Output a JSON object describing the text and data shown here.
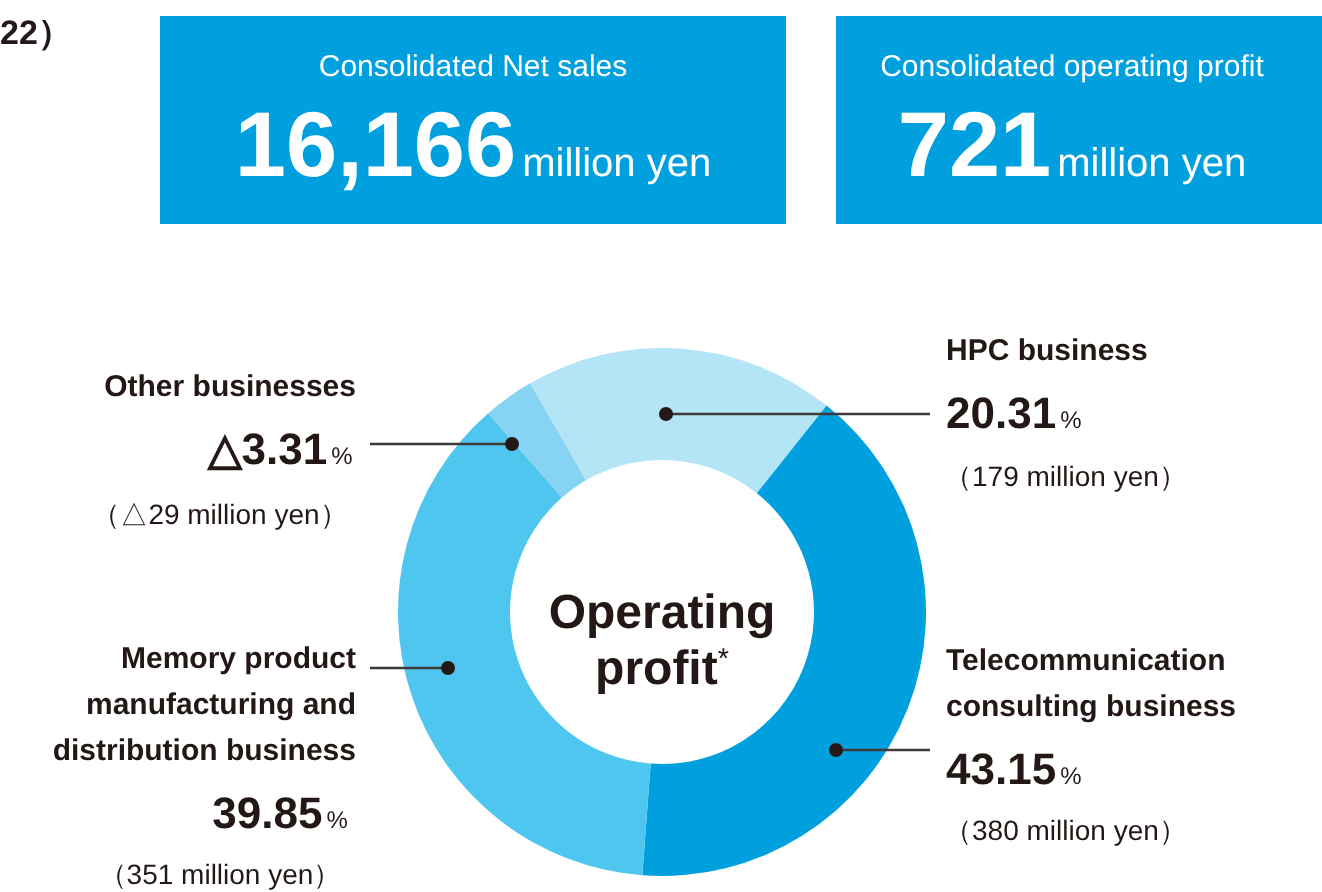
{
  "chart_data": [
    {
      "type": "other",
      "annotations": [
        "22）"
      ]
    },
    {
      "type": "other",
      "title": "Consolidated Net sales",
      "annotations": [
        "16,166",
        "million yen"
      ]
    },
    {
      "type": "other",
      "title": "Consolidated operating profit",
      "annotations": [
        "721",
        "million yen"
      ]
    },
    {
      "type": "donut",
      "title": "Operating profit$^{*}$",
      "categories": [
        "HPC business",
        "Telecommunication\nconsulting business",
        "Memory product\nmanufacturing and\ndistribution business",
        "Other businesses"
      ],
      "values": [
        20.31,
        43.15,
        39.85,
        3.31
      ],
      "colors": [
        "#b3e5f7",
        "#00a0de",
        "#4fc6ef",
        "#86d3f3"
      ],
      "value_labels": [
        "20.31%",
        "43.15%",
        "39.85%",
        "△3.31%"
      ],
      "annotations": [
        "（179 million yen）",
        "（380 million yen）",
        "（351 million yen）",
        "（△29 million yen）"
      ]
    }
  ]
}
